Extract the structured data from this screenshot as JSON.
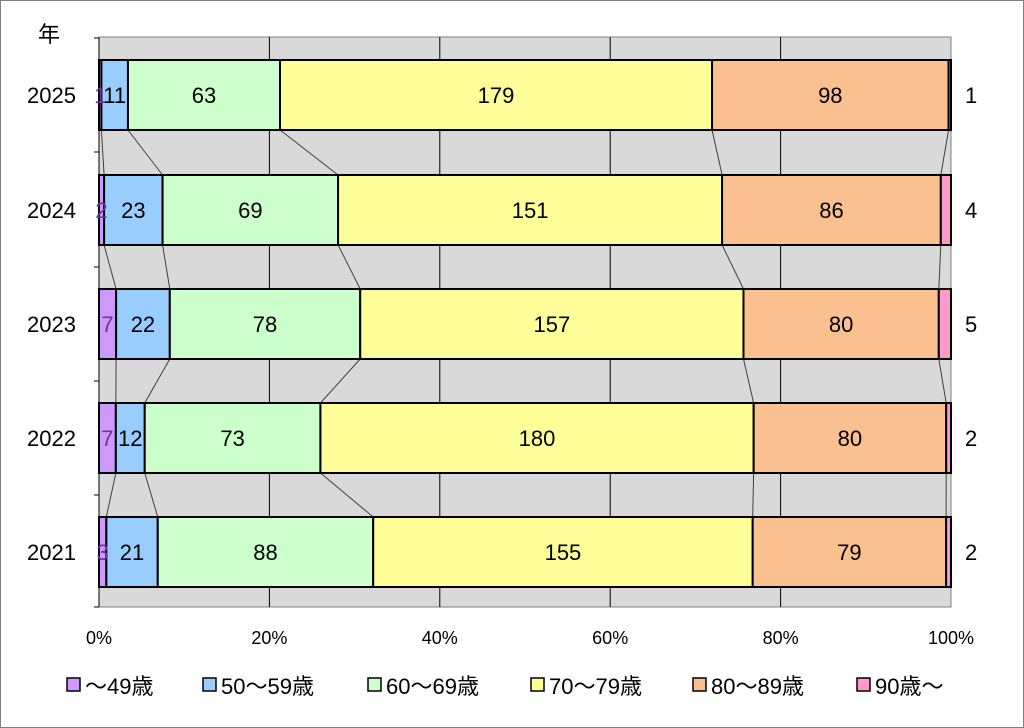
{
  "chart_data": {
    "type": "bar",
    "orientation": "horizontal",
    "stacked": "percent",
    "y_axis_unit_label": "年",
    "categories": [
      "2025",
      "2024",
      "2023",
      "2022",
      "2021"
    ],
    "series": [
      {
        "name": "～49歳",
        "color": "#cc99ff",
        "label_color": "#7030a0",
        "values": [
          1,
          2,
          7,
          7,
          3
        ]
      },
      {
        "name": "50～59歳",
        "color": "#99ccff",
        "label_color": "#000000",
        "values": [
          11,
          23,
          22,
          12,
          21
        ]
      },
      {
        "name": "60～69歳",
        "color": "#ccffcc",
        "label_color": "#000000",
        "values": [
          63,
          69,
          78,
          73,
          88
        ]
      },
      {
        "name": "70～79歳",
        "color": "#ffff99",
        "label_color": "#000000",
        "values": [
          179,
          151,
          157,
          180,
          155
        ]
      },
      {
        "name": "80～89歳",
        "color": "#fac090",
        "label_color": "#000000",
        "values": [
          98,
          86,
          80,
          80,
          79
        ]
      },
      {
        "name": "90歳～",
        "color": "#ff99cc",
        "label_color": "#000000",
        "values": [
          1,
          4,
          5,
          2,
          2
        ]
      }
    ],
    "xticks": [
      "0%",
      "20%",
      "40%",
      "60%",
      "80%",
      "100%"
    ],
    "xlim": [
      0,
      100
    ],
    "plot_background": "#d9d9d9",
    "series_lines": true,
    "legend_position": "bottom"
  }
}
